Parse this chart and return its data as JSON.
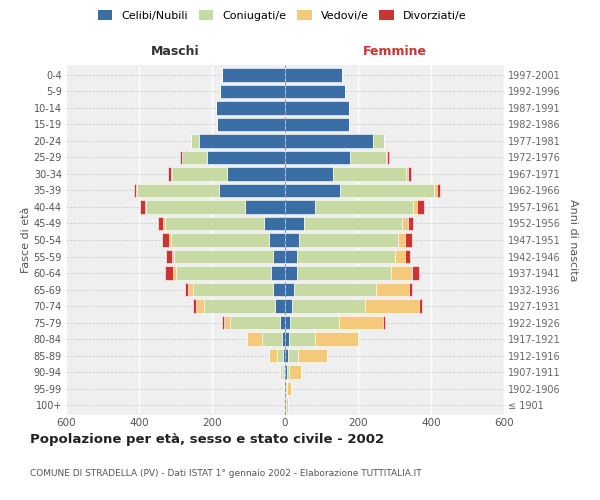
{
  "age_groups": [
    "100+",
    "95-99",
    "90-94",
    "85-89",
    "80-84",
    "75-79",
    "70-74",
    "65-69",
    "60-64",
    "55-59",
    "50-54",
    "45-49",
    "40-44",
    "35-39",
    "30-34",
    "25-29",
    "20-24",
    "15-19",
    "10-14",
    "5-9",
    "0-4"
  ],
  "birth_years": [
    "≤ 1901",
    "1902-1906",
    "1907-1911",
    "1912-1916",
    "1917-1921",
    "1922-1926",
    "1927-1931",
    "1932-1936",
    "1937-1941",
    "1942-1946",
    "1947-1951",
    "1952-1956",
    "1957-1961",
    "1962-1966",
    "1967-1971",
    "1972-1976",
    "1977-1981",
    "1982-1986",
    "1987-1991",
    "1992-1996",
    "1997-2001"
  ],
  "maschi": {
    "celibe": [
      0,
      2,
      3,
      5,
      8,
      15,
      28,
      32,
      38,
      32,
      45,
      58,
      110,
      180,
      158,
      215,
      235,
      185,
      188,
      178,
      172
    ],
    "coniugato": [
      0,
      2,
      6,
      18,
      55,
      135,
      195,
      220,
      260,
      272,
      268,
      272,
      270,
      225,
      152,
      68,
      22,
      0,
      0,
      0,
      0
    ],
    "vedovo": [
      0,
      2,
      6,
      22,
      42,
      18,
      22,
      14,
      10,
      6,
      5,
      3,
      3,
      2,
      2,
      0,
      0,
      0,
      0,
      0,
      0
    ],
    "divorziato": [
      0,
      0,
      0,
      0,
      0,
      5,
      8,
      8,
      20,
      15,
      20,
      16,
      15,
      8,
      8,
      5,
      0,
      0,
      0,
      0,
      0
    ]
  },
  "femmine": {
    "nubile": [
      2,
      3,
      5,
      8,
      10,
      15,
      20,
      26,
      32,
      32,
      38,
      52,
      82,
      152,
      132,
      178,
      242,
      175,
      175,
      165,
      155
    ],
    "coniugata": [
      0,
      2,
      6,
      28,
      72,
      132,
      198,
      222,
      258,
      268,
      272,
      268,
      270,
      256,
      200,
      98,
      28,
      0,
      0,
      0,
      0
    ],
    "vedova": [
      5,
      12,
      32,
      78,
      118,
      122,
      148,
      92,
      58,
      28,
      20,
      16,
      10,
      8,
      5,
      3,
      0,
      0,
      0,
      0,
      0
    ],
    "divorziata": [
      0,
      0,
      0,
      0,
      0,
      5,
      8,
      8,
      18,
      15,
      18,
      15,
      18,
      10,
      8,
      5,
      0,
      0,
      0,
      0,
      0
    ]
  },
  "colors": {
    "celibe": "#3b6ea5",
    "coniugato": "#c8daa4",
    "vedovo": "#f5c97a",
    "divorziato": "#cc3333"
  },
  "xlim": 600,
  "title": "Popolazione per età, sesso e stato civile - 2002",
  "subtitle": "COMUNE DI STRADELLA (PV) - Dati ISTAT 1° gennaio 2002 - Elaborazione TUTTITALIA.IT",
  "maschi_label": "Maschi",
  "femmine_label": "Femmine",
  "ylabel_left": "Fasce di età",
  "ylabel_right": "Anni di nascita",
  "legend_labels": [
    "Celibi/Nubili",
    "Coniugati/e",
    "Vedovi/e",
    "Divorziati/e"
  ],
  "bg_color": "#ffffff",
  "plot_bg_color": "#efefef"
}
